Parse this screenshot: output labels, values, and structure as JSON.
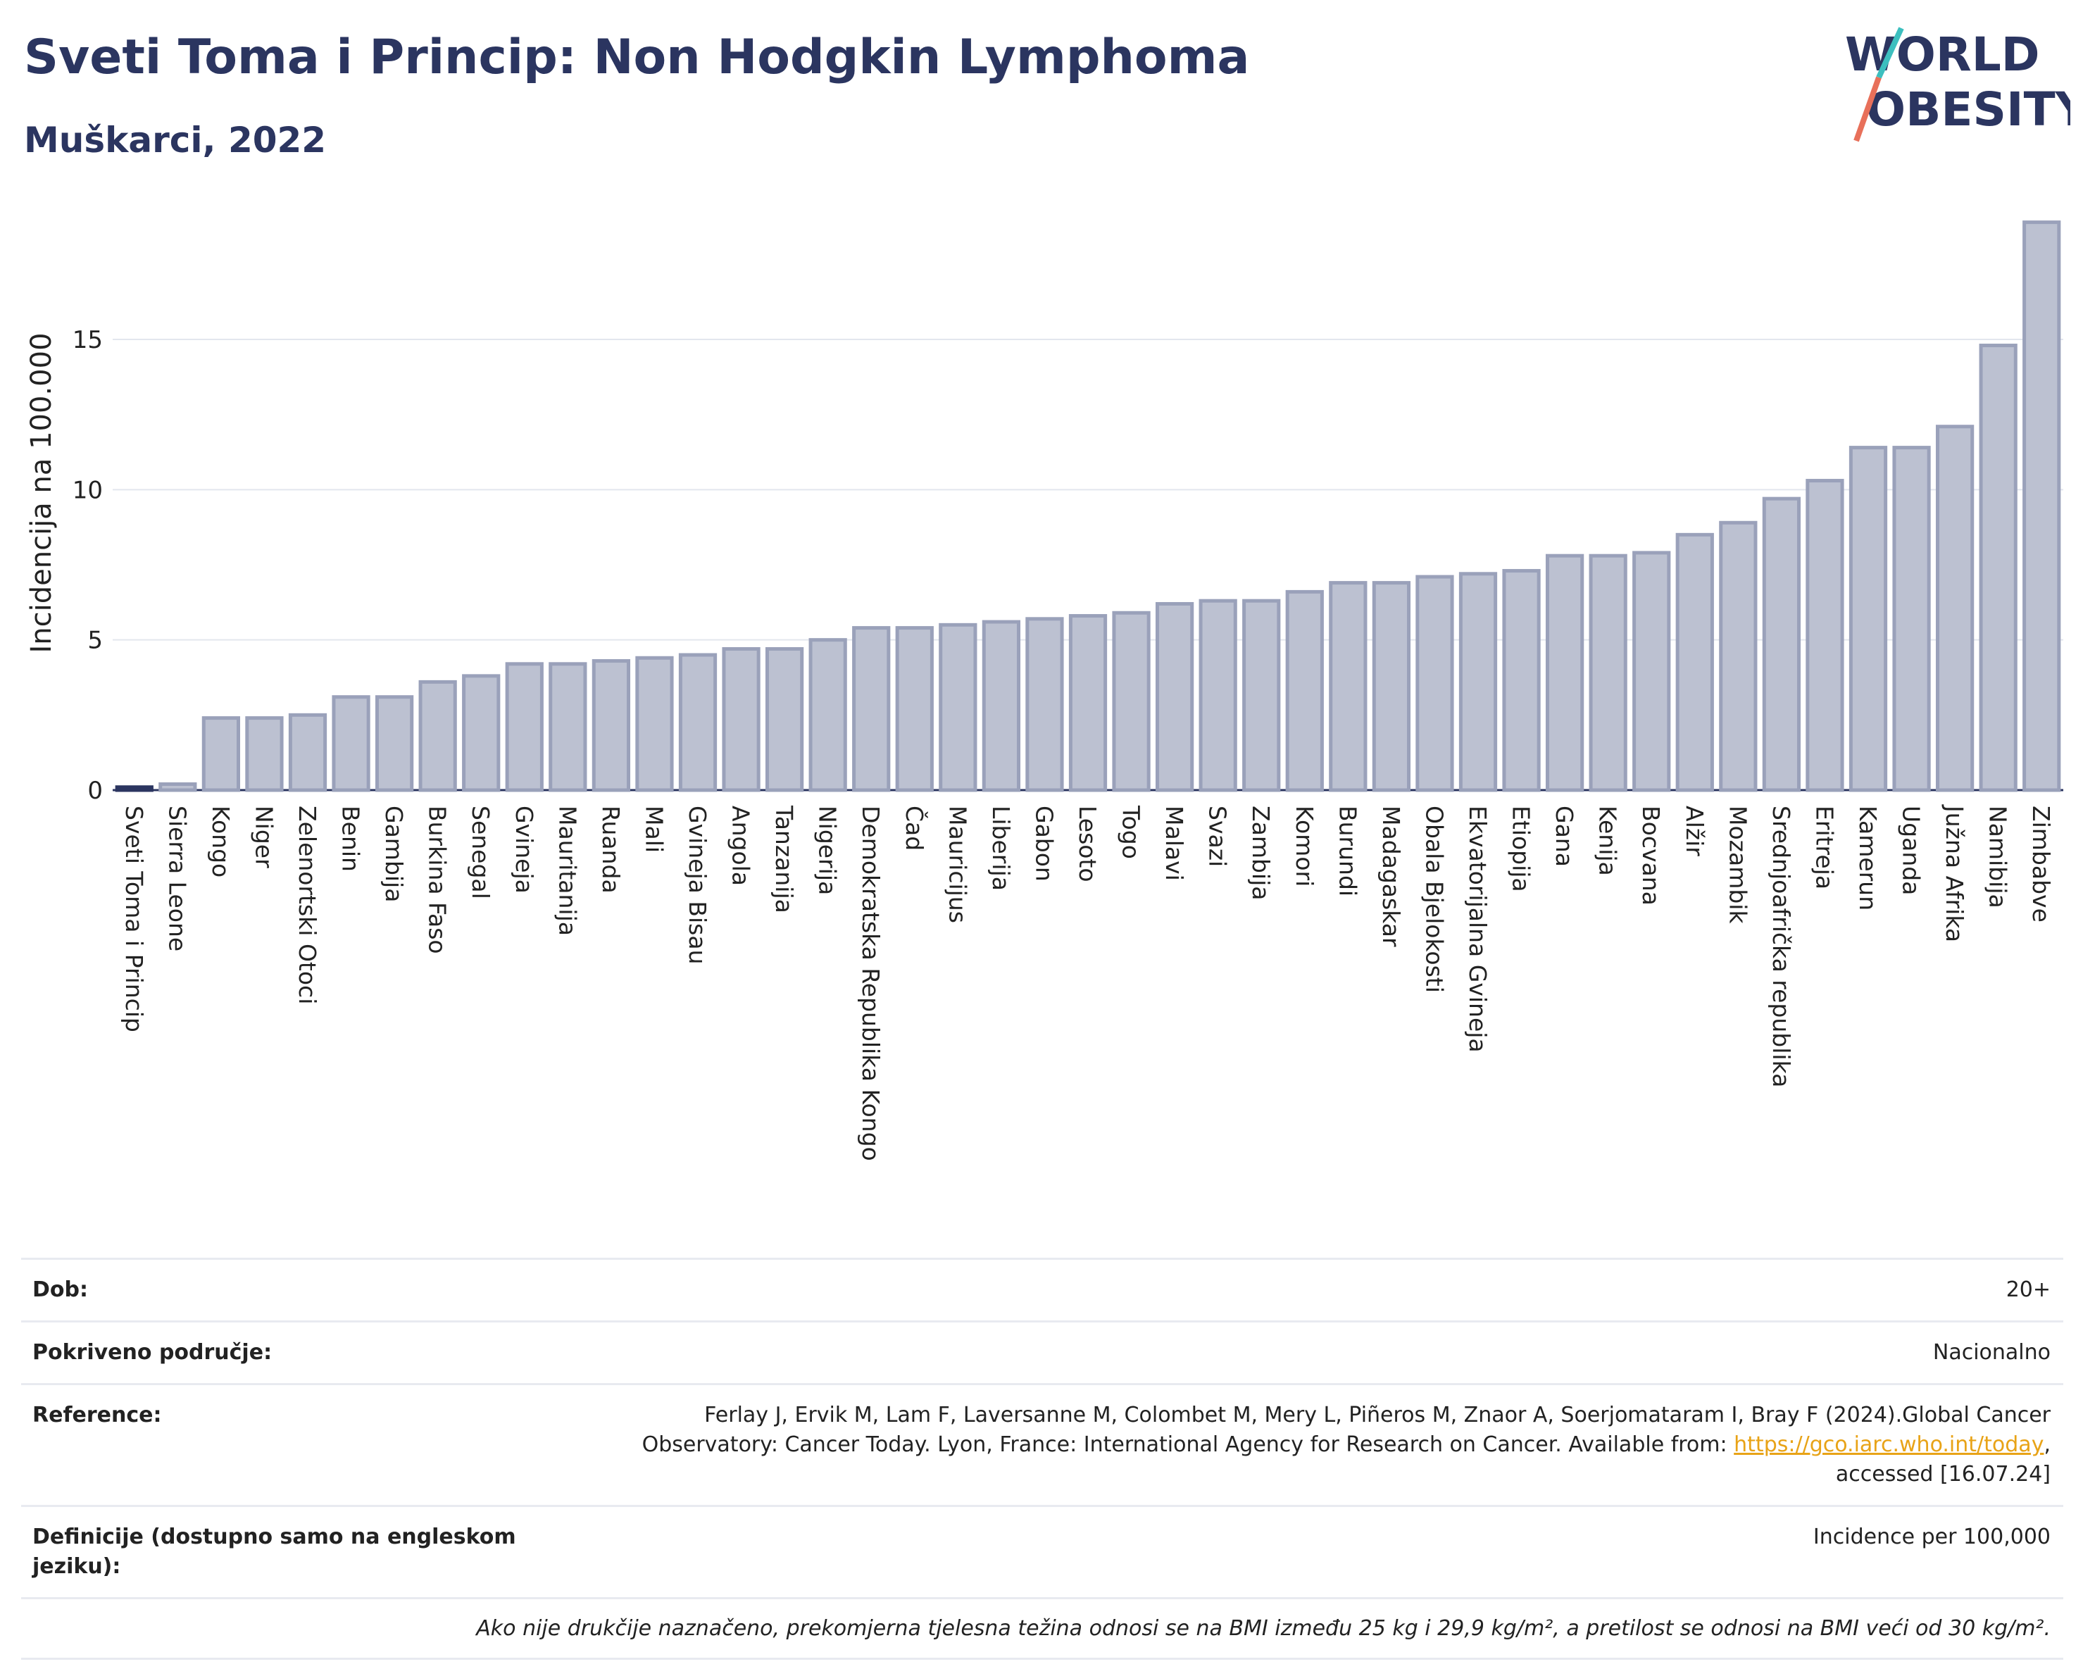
{
  "header": {
    "title": "Sveti Toma i Princip: Non Hodgkin Lymphoma",
    "subtitle": "Muškarci, 2022"
  },
  "logo": {
    "line1": "WORLD",
    "line2": "OBESITY",
    "accent_teal": "#3dbfbf",
    "accent_coral": "#e8705a"
  },
  "chart_data": {
    "type": "bar",
    "title": "Sveti Toma i Princip: Non Hodgkin Lymphoma",
    "subtitle": "Muškarci, 2022",
    "ylabel": "Incidencija na 100.000",
    "xlabel": "",
    "ylim": [
      0,
      19.5
    ],
    "yticks": [
      0,
      5,
      10,
      15
    ],
    "grid": true,
    "highlight_category": "Sveti Toma i Princip",
    "colors": {
      "bar_fill": "#bcc1d1",
      "bar_stroke": "#9aa1ba",
      "highlight": "#2b3560"
    },
    "categories": [
      "Sveti Toma i Princip",
      "Sierra Leone",
      "Kongo",
      "Niger",
      "Zelenortski Otoci",
      "Benin",
      "Gambija",
      "Burkina Faso",
      "Senegal",
      "Gvineja",
      "Mauritanija",
      "Ruanda",
      "Mali",
      "Gvineja Bisau",
      "Angola",
      "Tanzanija",
      "Nigerija",
      "Demokratska Republika Kongo",
      "Čad",
      "Mauricijus",
      "Liberija",
      "Gabon",
      "Lesoto",
      "Togo",
      "Malavi",
      "Svazi",
      "Zambija",
      "Komori",
      "Burundi",
      "Madagaskar",
      "Obala Bjelokosti",
      "Ekvatorijalna Gvineja",
      "Etiopija",
      "Gana",
      "Kenija",
      "Bocvana",
      "Alžir",
      "Mozambik",
      "Srednjoafrička republika",
      "Eritreja",
      "Kamerun",
      "Uganda",
      "Južna Afrika",
      "Namibija",
      "Zimbabve"
    ],
    "values": [
      0.1,
      0.2,
      2.4,
      2.4,
      2.5,
      3.1,
      3.1,
      3.6,
      3.8,
      4.2,
      4.2,
      4.3,
      4.4,
      4.5,
      4.7,
      4.7,
      5.0,
      5.4,
      5.4,
      5.5,
      5.6,
      5.7,
      5.8,
      5.9,
      6.2,
      6.3,
      6.3,
      6.6,
      6.9,
      6.9,
      7.1,
      7.2,
      7.3,
      7.8,
      7.8,
      7.9,
      8.5,
      8.9,
      9.7,
      10.3,
      11.4,
      11.4,
      12.1,
      14.8,
      18.9
    ]
  },
  "meta": {
    "rows": [
      {
        "label": "Dob:",
        "value": "20+"
      },
      {
        "label": "Pokriveno područje:",
        "value": "Nacionalno"
      },
      {
        "label": "Reference:",
        "value_pre": "Ferlay J, Ervik M, Lam F, Laversanne M, Colombet M, Mery L, Piñeros M, Znaor A, Soerjomataram I, Bray F (2024).Global Cancer Observatory: Cancer Today. Lyon, France: International Agency for Research on Cancer. Available from: ",
        "link": "https://gco.iarc.who.int/today",
        "value_post": ", accessed [16.07.24]"
      },
      {
        "label": "Definicije (dostupno samo na engleskom jeziku):",
        "value": "Incidence per 100,000"
      }
    ],
    "note": "Ako nije drukčije naznačeno, prekomjerna tjelesna težina odnosi se na BMI između 25 kg i 29,9 kg/m², a pretilost se odnosi na BMI veći od 30 kg/m²."
  }
}
